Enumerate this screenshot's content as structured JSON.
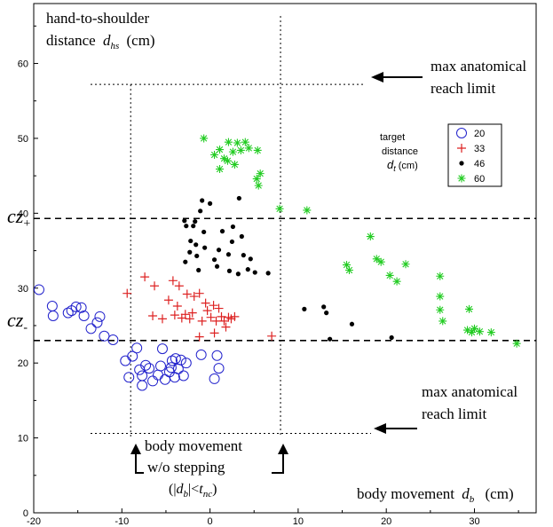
{
  "chart_data": {
    "type": "scatter",
    "xlabel": "",
    "ylabel": "",
    "xlim": [
      -20,
      37
    ],
    "ylim": [
      0,
      68
    ],
    "x_ticks": [
      -20,
      -10,
      0,
      10,
      20,
      30
    ],
    "y_ticks": [
      0,
      10,
      20,
      30,
      40,
      50,
      60
    ],
    "grid": false,
    "legend_title": [
      "target",
      "distance",
      "d",
      "t",
      "(cm)"
    ],
    "legend_position": "right",
    "series": [
      {
        "name": "20",
        "marker": "circle-open",
        "color": "#2222cc",
        "points": [
          [
            -19.4,
            29.8
          ],
          [
            -17.9,
            27.6
          ],
          [
            -17.8,
            26.3
          ],
          [
            -16.1,
            26.7
          ],
          [
            -15.7,
            27.0
          ],
          [
            -15.2,
            27.5
          ],
          [
            -14.6,
            27.4
          ],
          [
            -14.3,
            26.3
          ],
          [
            -13.5,
            24.6
          ],
          [
            -12.8,
            25.4
          ],
          [
            -12.5,
            26.2
          ],
          [
            -12.0,
            23.6
          ],
          [
            -11.0,
            23.1
          ],
          [
            -9.6,
            20.3
          ],
          [
            -9.2,
            18.1
          ],
          [
            -8.8,
            20.9
          ],
          [
            -8.3,
            22.0
          ],
          [
            -8.0,
            19.1
          ],
          [
            -7.7,
            18.3
          ],
          [
            -7.7,
            17.0
          ],
          [
            -7.3,
            19.7
          ],
          [
            -6.9,
            19.3
          ],
          [
            -6.5,
            17.6
          ],
          [
            -5.9,
            18.4
          ],
          [
            -5.6,
            19.6
          ],
          [
            -5.4,
            21.9
          ],
          [
            -5.1,
            17.8
          ],
          [
            -4.6,
            18.8
          ],
          [
            -4.4,
            19.4
          ],
          [
            -4.3,
            20.3
          ],
          [
            -4.0,
            18.1
          ],
          [
            -3.9,
            20.6
          ],
          [
            -3.6,
            19.2
          ],
          [
            -3.3,
            20.4
          ],
          [
            -3.0,
            18.3
          ],
          [
            -2.7,
            20.0
          ],
          [
            -1.0,
            21.1
          ],
          [
            0.8,
            21.0
          ],
          [
            1.0,
            19.3
          ],
          [
            0.5,
            17.9
          ]
        ]
      },
      {
        "name": "33",
        "marker": "plus",
        "color": "#dd2222",
        "points": [
          [
            -9.4,
            29.3
          ],
          [
            -7.4,
            31.5
          ],
          [
            -6.5,
            26.3
          ],
          [
            -6.3,
            30.3
          ],
          [
            -5.4,
            25.9
          ],
          [
            -4.7,
            28.4
          ],
          [
            -4.2,
            31.0
          ],
          [
            -4.0,
            26.4
          ],
          [
            -3.7,
            27.6
          ],
          [
            -3.5,
            30.3
          ],
          [
            -3.2,
            26.0
          ],
          [
            -2.8,
            26.5
          ],
          [
            -2.6,
            29.2
          ],
          [
            -2.3,
            25.9
          ],
          [
            -2.0,
            26.7
          ],
          [
            -1.8,
            28.9
          ],
          [
            -1.2,
            29.3
          ],
          [
            -0.9,
            25.6
          ],
          [
            -0.5,
            28.0
          ],
          [
            -0.3,
            27.0
          ],
          [
            0.1,
            26.1
          ],
          [
            0.4,
            27.7
          ],
          [
            0.7,
            25.6
          ],
          [
            1.0,
            27.3
          ],
          [
            1.3,
            26.2
          ],
          [
            1.6,
            25.6
          ],
          [
            1.8,
            24.8
          ],
          [
            2.1,
            26.1
          ],
          [
            2.4,
            25.9
          ],
          [
            2.8,
            26.2
          ],
          [
            0.5,
            24.0
          ],
          [
            -1.2,
            23.5
          ],
          [
            7.0,
            23.6
          ]
        ]
      },
      {
        "name": "46",
        "marker": "dot",
        "color": "#000000",
        "points": [
          [
            -0.9,
            41.7
          ],
          [
            -1.1,
            40.3
          ],
          [
            0.0,
            41.3
          ],
          [
            3.3,
            42.0
          ],
          [
            -1.7,
            38.9
          ],
          [
            -2.9,
            39.0
          ],
          [
            -2.7,
            38.3
          ],
          [
            -1.9,
            38.3
          ],
          [
            -0.7,
            37.5
          ],
          [
            1.4,
            37.6
          ],
          [
            2.6,
            38.2
          ],
          [
            -2.2,
            36.3
          ],
          [
            -1.6,
            35.8
          ],
          [
            -0.6,
            35.4
          ],
          [
            1.0,
            35.1
          ],
          [
            2.5,
            36.2
          ],
          [
            3.6,
            36.9
          ],
          [
            -2.3,
            34.8
          ],
          [
            -1.5,
            34.3
          ],
          [
            0.5,
            33.8
          ],
          [
            2.1,
            34.5
          ],
          [
            3.8,
            34.4
          ],
          [
            4.6,
            33.9
          ],
          [
            -2.8,
            33.5
          ],
          [
            -1.3,
            32.4
          ],
          [
            0.8,
            32.9
          ],
          [
            2.2,
            32.3
          ],
          [
            3.2,
            31.9
          ],
          [
            4.3,
            32.5
          ],
          [
            5.1,
            32.1
          ],
          [
            6.6,
            32.0
          ],
          [
            10.7,
            27.2
          ],
          [
            12.9,
            27.5
          ],
          [
            13.2,
            26.7
          ],
          [
            16.1,
            25.2
          ],
          [
            13.6,
            23.2
          ],
          [
            20.6,
            23.4
          ]
        ]
      },
      {
        "name": "60",
        "marker": "star",
        "color": "#22cc22",
        "points": [
          [
            -0.7,
            50.0
          ],
          [
            1.1,
            48.5
          ],
          [
            2.1,
            49.5
          ],
          [
            2.6,
            48.2
          ],
          [
            3.1,
            49.4
          ],
          [
            3.5,
            48.4
          ],
          [
            4.0,
            49.5
          ],
          [
            4.4,
            48.7
          ],
          [
            5.4,
            48.4
          ],
          [
            0.5,
            47.8
          ],
          [
            1.6,
            47.3
          ],
          [
            2.0,
            47.0
          ],
          [
            2.8,
            46.5
          ],
          [
            1.1,
            45.9
          ],
          [
            5.7,
            45.3
          ],
          [
            5.3,
            44.6
          ],
          [
            5.5,
            43.7
          ],
          [
            7.9,
            40.6
          ],
          [
            11.0,
            40.4
          ],
          [
            18.2,
            36.9
          ],
          [
            18.9,
            33.9
          ],
          [
            19.4,
            33.5
          ],
          [
            15.5,
            33.1
          ],
          [
            15.8,
            32.4
          ],
          [
            22.2,
            33.2
          ],
          [
            20.4,
            31.7
          ],
          [
            21.2,
            30.9
          ],
          [
            26.1,
            31.6
          ],
          [
            26.1,
            28.9
          ],
          [
            26.1,
            27.1
          ],
          [
            26.4,
            25.6
          ],
          [
            29.4,
            27.2
          ],
          [
            29.2,
            24.4
          ],
          [
            30.0,
            24.6
          ],
          [
            29.7,
            24.1
          ],
          [
            31.9,
            24.1
          ],
          [
            30.6,
            24.2
          ],
          [
            34.8,
            22.6
          ]
        ]
      }
    ],
    "ref_lines": {
      "cz_plus": 39.3,
      "cz_minus": 23.0,
      "reach_upper": 57.2,
      "reach_lower": 10.6,
      "step_left": -9.0,
      "step_right": 8.0
    },
    "annotations": {
      "y_axis_title_line1": "hand-to-shoulder",
      "y_axis_title_line2": "distance",
      "y_axis_title_var": "d",
      "y_axis_title_sub": "hs",
      "y_axis_title_unit": "(cm)",
      "reach_top_line1": "max anatomical",
      "reach_top_line2": "reach limit",
      "reach_bottom_line1": "max anatomical",
      "reach_bottom_line2": "reach limit",
      "cz_plus_main": "cz",
      "cz_plus_sub": "+",
      "cz_minus_main": "cz",
      "cz_minus_sub": "-",
      "body_movement_line1": "body movement",
      "body_movement_line2": "w/o stepping",
      "stepping_condition_open": "(|",
      "stepping_condition_var": "d",
      "stepping_condition_sub": "b",
      "stepping_condition_mid": "|<",
      "stepping_condition_var2": "t",
      "stepping_condition_sub2": "nc",
      "stepping_condition_close": ")",
      "x_axis_title_text": "body movement",
      "x_axis_title_var": "d",
      "x_axis_title_sub": "b",
      "x_axis_title_unit": "(cm)"
    }
  }
}
